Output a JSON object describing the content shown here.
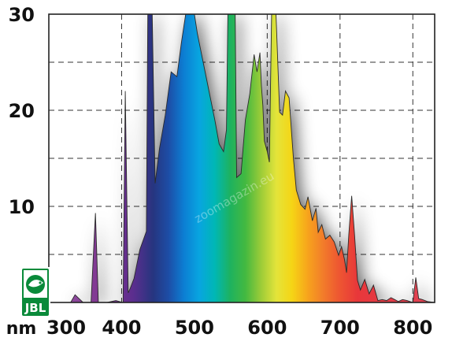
{
  "logo": {
    "text": "JBL",
    "colors": {
      "green": "#0a8a3a",
      "white": "#ffffff"
    }
  },
  "watermark": {
    "text": "zoomagazin.eu"
  },
  "chart_data": {
    "type": "area",
    "title": "",
    "xlabel": "",
    "ylabel": "",
    "x_unit_label": "nm",
    "xlim": [
      300,
      830
    ],
    "ylim": [
      0,
      30
    ],
    "x_ticks": [
      300,
      400,
      500,
      600,
      700,
      800
    ],
    "x_tick_labels": [
      "300",
      "400",
      "500",
      "600",
      "700",
      "800"
    ],
    "y_ticks": [
      10,
      20,
      30
    ],
    "y_tick_labels": [
      "10",
      "20",
      "30"
    ],
    "grid": true,
    "grid_style": "dashed",
    "series": [
      {
        "fill": "visible-spectrum-gradient",
        "x": [
          300,
          330,
          336,
          347,
          358,
          364,
          368,
          372,
          380,
          392,
          402,
          405,
          409,
          412,
          417,
          425,
          434,
          436,
          438,
          440,
          442,
          446,
          452,
          460,
          468,
          476,
          482,
          488,
          490,
          494,
          497,
          500,
          504,
          512,
          520,
          528,
          534,
          540,
          544,
          546,
          548,
          554,
          556,
          558,
          564,
          570,
          576,
          582,
          586,
          590,
          592,
          594,
          596,
          600,
          603,
          606,
          608,
          610,
          612,
          617,
          621,
          625,
          630,
          636,
          640,
          646,
          652,
          656,
          662,
          667,
          670,
          675,
          680,
          686,
          692,
          698,
          702,
          706,
          709,
          712,
          716,
          720,
          724,
          728,
          734,
          740,
          746,
          752,
          758,
          764,
          770,
          775,
          780,
          786,
          792,
          800,
          804,
          808,
          813,
          820,
          830
        ],
        "y": [
          0,
          0,
          0.8,
          0,
          0,
          9.3,
          0,
          0,
          0,
          0.2,
          0,
          22,
          1,
          1.5,
          2.5,
          5.5,
          7.4,
          30,
          30,
          30,
          30,
          12.4,
          16,
          19.5,
          24,
          23.5,
          27,
          30,
          30,
          30,
          30,
          30,
          28,
          25,
          22,
          19,
          16.5,
          15.7,
          18,
          30,
          30,
          30,
          30,
          13,
          13.4,
          19,
          21.7,
          25.8,
          24,
          26,
          22.5,
          20.5,
          16.8,
          15.7,
          14.6,
          30,
          30,
          30,
          30,
          19.8,
          19.5,
          22,
          21.3,
          15,
          11.7,
          10.2,
          9.7,
          11,
          8.5,
          9.8,
          7.3,
          8.1,
          6.6,
          7,
          6.3,
          4.9,
          5.8,
          4.5,
          3.1,
          7,
          11.1,
          7,
          2.3,
          1.3,
          2.4,
          0.9,
          1.8,
          0.2,
          0.3,
          0.2,
          0.5,
          0.3,
          0.1,
          0.3,
          0.2,
          0,
          2.6,
          0.4,
          0.3,
          0.1,
          0
        ]
      }
    ]
  }
}
